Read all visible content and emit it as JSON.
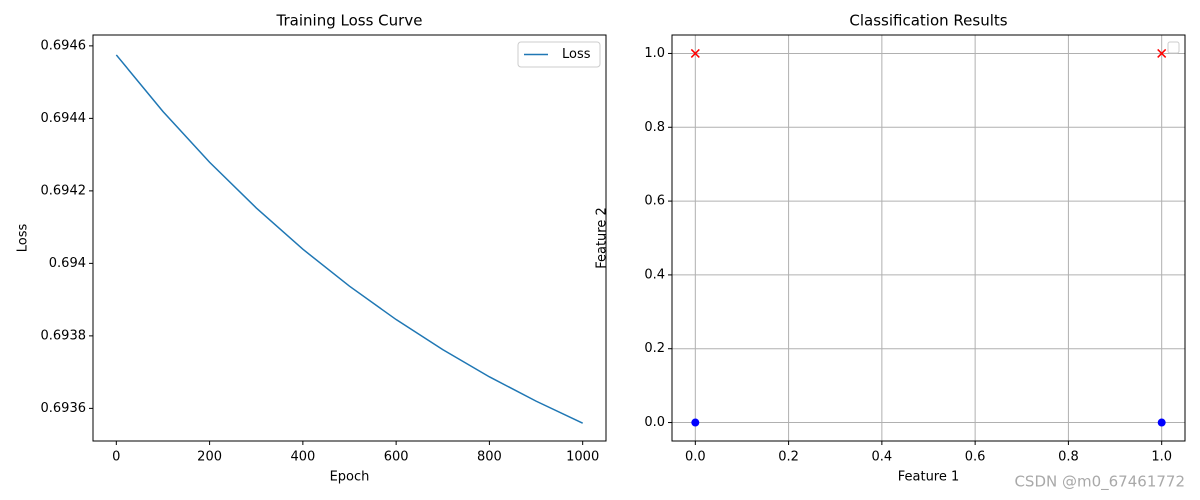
{
  "chart_data": [
    {
      "type": "line",
      "title": "Training Loss Curve",
      "x_label": "Epoch",
      "y_label": "Loss",
      "x": [
        0,
        100,
        200,
        300,
        400,
        500,
        600,
        700,
        800,
        900,
        1000
      ],
      "series": [
        {
          "name": "Loss",
          "color": "#1f77b4",
          "values": [
            0.694575,
            0.694419,
            0.694279,
            0.694153,
            0.694039,
            0.693937,
            0.693845,
            0.693762,
            0.693687,
            0.69362,
            0.693559
          ]
        }
      ],
      "xlim": [
        -50,
        1050
      ],
      "xticks": [
        0,
        200,
        400,
        600,
        800,
        1000
      ],
      "ylim": [
        0.69351,
        0.69463
      ],
      "yticks": [
        0.6936,
        0.6938,
        0.694,
        0.6942,
        0.6944,
        0.6946
      ],
      "grid": false,
      "legend": "upper right"
    },
    {
      "type": "scatter",
      "title": "Classification Results",
      "x_label": "Feature 1",
      "y_label": "Feature 2",
      "series": [
        {
          "color": "#0000ff",
          "marker": "o",
          "x": [
            0,
            1
          ],
          "values": [
            0,
            0
          ]
        },
        {
          "color": "#ff0000",
          "marker": "x",
          "x": [
            0,
            1
          ],
          "values": [
            1,
            1
          ]
        }
      ],
      "xlim": [
        -0.05,
        1.05
      ],
      "xticks": [
        {
          "value": 0,
          "label": "0.0"
        },
        0.2,
        0.4,
        0.6,
        0.8,
        {
          "value": 1,
          "label": "1.0"
        }
      ],
      "ylim": [
        -0.05,
        1.05
      ],
      "yticks": [
        {
          "value": 0,
          "label": "0.0"
        },
        0.2,
        0.4,
        0.6,
        0.8,
        {
          "value": 1,
          "label": "1.0"
        }
      ],
      "grid": true
    }
  ],
  "watermark": "CSDN @m0_67461772"
}
